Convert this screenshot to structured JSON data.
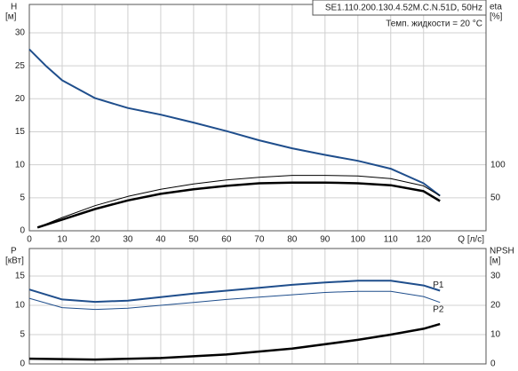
{
  "chart_data": [
    {
      "type": "line",
      "info": [
        "SE1.110.200.130.4.52M.C.N.51D, 50Hz",
        "Темп. жидкости = 20 °C"
      ],
      "ylabel": "H",
      "yunit": "[м]",
      "y2label": "eta",
      "y2unit": "[%]",
      "xlabel": "Q [л/с]",
      "xlim": [
        0,
        139
      ],
      "xticks": [
        0,
        10,
        20,
        30,
        40,
        50,
        60,
        70,
        80,
        90,
        100,
        110,
        120
      ],
      "ylim": [
        0,
        34.3
      ],
      "yticks": [
        0,
        5,
        10,
        15,
        20,
        25,
        30
      ],
      "y2lim": [
        0,
        343
      ],
      "y2ticks": [
        50,
        100
      ],
      "grid": true,
      "series": [
        {
          "color": "#1f4e8c",
          "line_width": 2,
          "axis": "y",
          "x": [
            0,
            5,
            10,
            20,
            30,
            40,
            50,
            60,
            70,
            80,
            90,
            100,
            110,
            120,
            125
          ],
          "values": [
            27.5,
            25,
            22.8,
            20.1,
            18.6,
            17.6,
            16.4,
            15.1,
            13.7,
            12.5,
            11.5,
            10.6,
            9.4,
            7.2,
            5.3
          ]
        },
        {
          "color": "#000000",
          "line_width": 1,
          "axis": "y2",
          "x": [
            2.5,
            10,
            20,
            30,
            40,
            50,
            60,
            70,
            80,
            90,
            100,
            110,
            120,
            125
          ],
          "values": [
            5,
            20,
            38,
            52,
            63,
            71,
            77,
            81,
            84,
            84,
            83,
            79,
            68,
            53
          ]
        },
        {
          "color": "#000000",
          "line_width": 2.5,
          "axis": "y2",
          "x": [
            2.5,
            10,
            20,
            30,
            40,
            50,
            60,
            70,
            80,
            90,
            100,
            110,
            120,
            125
          ],
          "values": [
            5,
            17,
            33,
            46,
            56,
            63,
            68,
            72,
            73,
            73,
            72,
            69,
            60,
            45
          ]
        }
      ]
    },
    {
      "type": "line",
      "ylabel": "P",
      "yunit": "[кВт]",
      "y2label": "NPSH",
      "y2unit": "[м]",
      "xlim": [
        0,
        139
      ],
      "xticks": [
        0,
        10,
        20,
        30,
        40,
        50,
        60,
        70,
        80,
        90,
        100,
        110,
        120
      ],
      "ylim": [
        0,
        19.7
      ],
      "yticks": [
        0,
        5,
        10,
        15
      ],
      "y2lim": [
        0,
        39.4
      ],
      "y2ticks": [
        0,
        10,
        20,
        30
      ],
      "grid": true,
      "series": [
        {
          "name": "P1",
          "color": "#1f4e8c",
          "line_width": 2,
          "axis": "y",
          "x": [
            0,
            10,
            20,
            30,
            40,
            50,
            60,
            70,
            80,
            90,
            100,
            110,
            120,
            125
          ],
          "values": [
            12.7,
            11,
            10.6,
            10.8,
            11.4,
            12,
            12.5,
            13,
            13.5,
            13.9,
            14.2,
            14.2,
            13.4,
            12.5
          ]
        },
        {
          "name": "P2",
          "color": "#1f4e8c",
          "line_width": 1,
          "axis": "y",
          "x": [
            0,
            10,
            20,
            30,
            40,
            50,
            60,
            70,
            80,
            90,
            100,
            110,
            120,
            125
          ],
          "values": [
            11.2,
            9.6,
            9.3,
            9.5,
            10,
            10.5,
            11,
            11.4,
            11.8,
            12.2,
            12.4,
            12.4,
            11.5,
            10.5
          ]
        },
        {
          "color": "#000000",
          "line_width": 2.5,
          "axis": "y2",
          "x": [
            0,
            20,
            40,
            60,
            80,
            100,
            110,
            120,
            125
          ],
          "values": [
            1.8,
            1.5,
            2,
            3.2,
            5.2,
            8.2,
            10,
            12,
            13.6
          ]
        }
      ]
    }
  ]
}
